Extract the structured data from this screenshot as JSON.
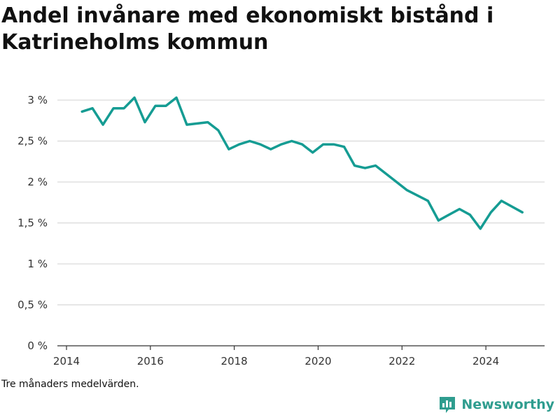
{
  "title": "Andel invånare med ekonomiskt bistånd i Katrineholms kommun",
  "footnote": "Tre månaders medelvärden.",
  "brand": {
    "name": "Newsworthy",
    "icon": "newsworthy-logo-icon",
    "color": "#2f9d8f"
  },
  "colors": {
    "line": "#159c93",
    "grid": "#d9d9d9",
    "axis": "#333333"
  },
  "chart_data": {
    "type": "line",
    "title": "Andel invånare med ekonomiskt bistånd i Katrineholms kommun",
    "xlabel": "",
    "ylabel": "",
    "x_ticks": [
      "2014",
      "2016",
      "2018",
      "2020",
      "2022",
      "2024"
    ],
    "y_ticks": [
      "0 %",
      "0,5 %",
      "1 %",
      "1,5 %",
      "2 %",
      "2,5 %",
      "3 %"
    ],
    "xlim": [
      2014,
      2025.4
    ],
    "ylim": [
      0,
      3
    ],
    "grid": true,
    "legend": "none",
    "series": [
      {
        "x": [
          2014.37,
          2014.62,
          2014.87,
          2015.12,
          2015.37,
          2015.62,
          2015.87,
          2016.12,
          2016.37,
          2016.62,
          2016.87,
          2017.37,
          2017.62,
          2017.87,
          2018.12,
          2018.37,
          2018.62,
          2018.87,
          2019.12,
          2019.37,
          2019.62,
          2019.87,
          2020.12,
          2020.37,
          2020.62,
          2020.87,
          2021.12,
          2021.37,
          2022.12,
          2022.62,
          2022.87,
          2023.37,
          2023.62,
          2023.87,
          2024.12,
          2024.37,
          2024.87
        ],
        "values": [
          2.86,
          2.9,
          2.7,
          2.9,
          2.9,
          3.03,
          2.73,
          2.93,
          2.93,
          3.03,
          2.7,
          2.73,
          2.63,
          2.4,
          2.46,
          2.5,
          2.46,
          2.4,
          2.46,
          2.5,
          2.46,
          2.36,
          2.46,
          2.46,
          2.43,
          2.2,
          2.17,
          2.2,
          1.9,
          1.77,
          1.53,
          1.67,
          1.6,
          1.43,
          1.63,
          1.77,
          1.63
        ]
      }
    ]
  }
}
